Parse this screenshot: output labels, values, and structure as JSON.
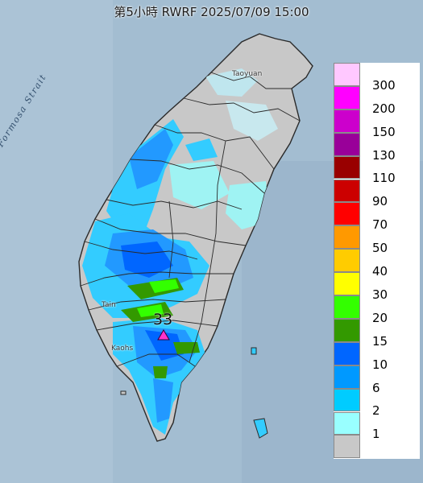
{
  "title": "第5小時  RWRF 2025/07/09 15:00",
  "strait_label": "Formosa Strait",
  "places": {
    "taoyuan": "Taoyuan",
    "tainan": "Tain",
    "kaohsiung": "Kaohs"
  },
  "max_marker": {
    "value": "33",
    "color": "#ff33cc"
  },
  "legend": {
    "labels": [
      "300",
      "200",
      "150",
      "130",
      "110",
      "90",
      "70",
      "50",
      "40",
      "30",
      "20",
      "15",
      "10",
      "6",
      "2",
      "1",
      ""
    ],
    "colors": [
      "#ffc8ff",
      "#ff00ff",
      "#cc00cc",
      "#990099",
      "#990000",
      "#cc0000",
      "#ff0000",
      "#ff9900",
      "#ffcc00",
      "#ffff00",
      "#33ff00",
      "#339900",
      "#0066ff",
      "#0099ff",
      "#00ccff",
      "#99ffff",
      "#c8c8c8"
    ]
  }
}
